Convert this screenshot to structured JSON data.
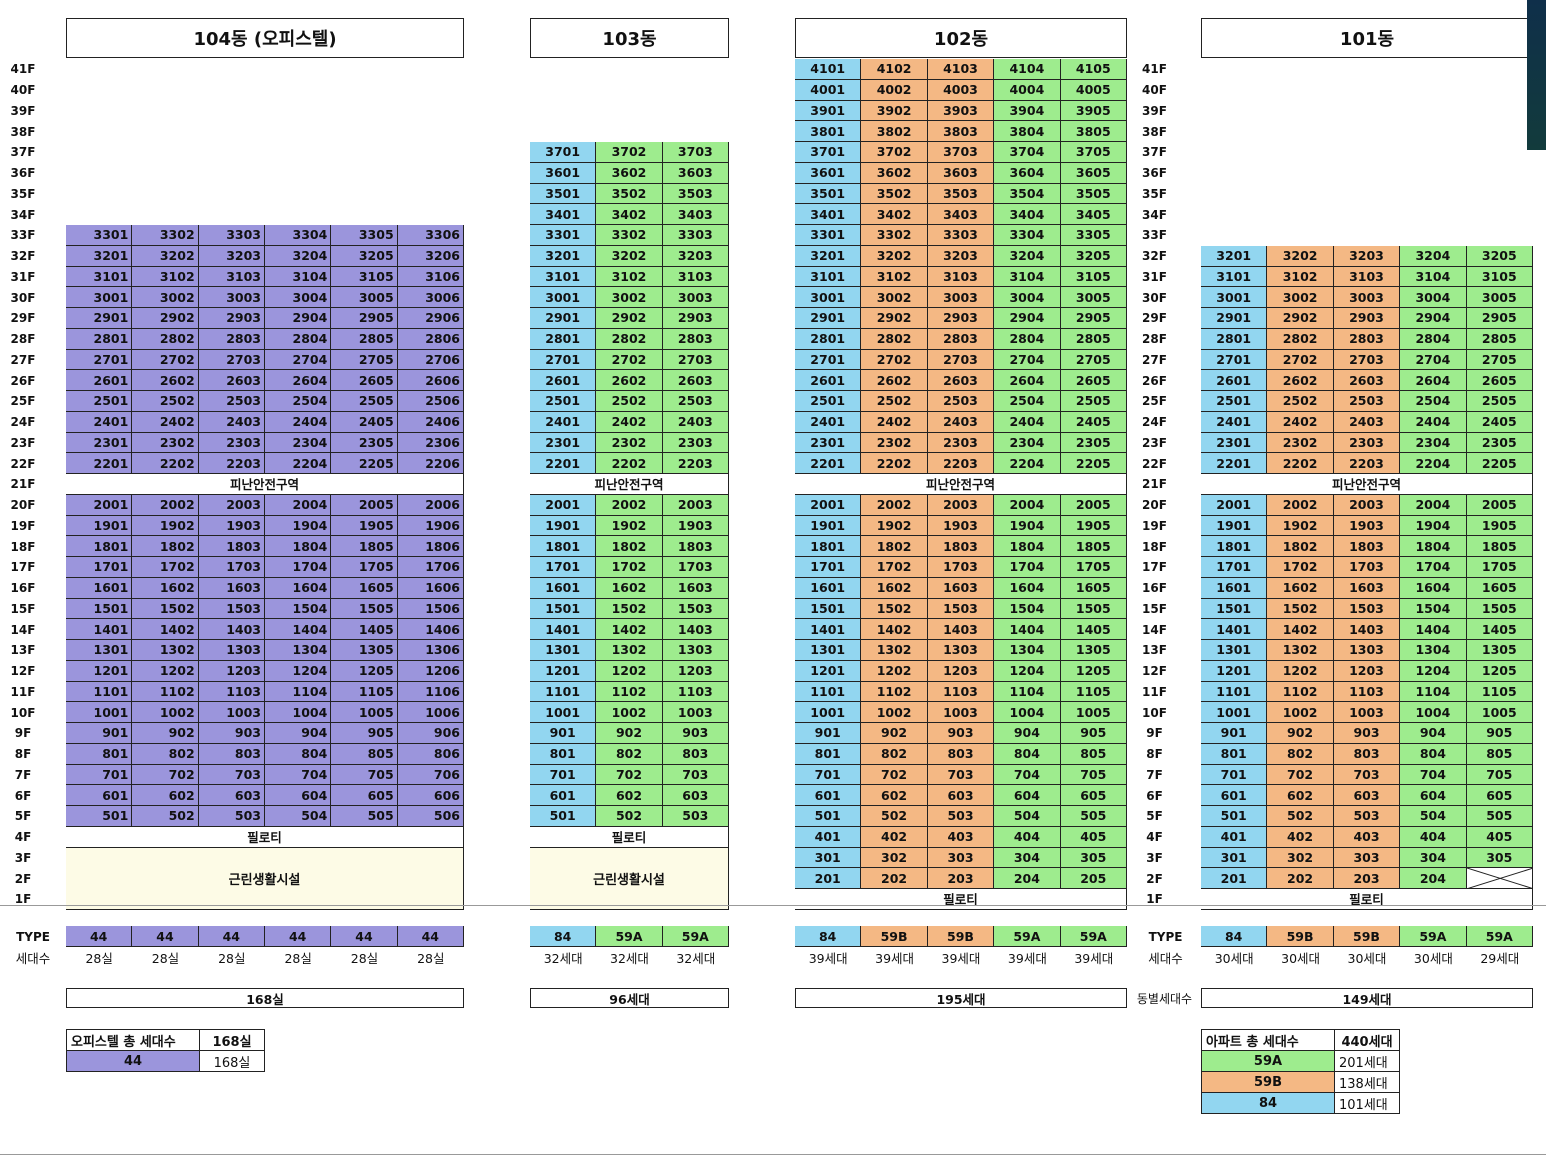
{
  "headers": {
    "b104": "104동 (오피스텔)",
    "b103": "103동",
    "b102": "102동",
    "b101": "101동"
  },
  "floor_labels": [
    "41F",
    "40F",
    "39F",
    "38F",
    "37F",
    "36F",
    "35F",
    "34F",
    "33F",
    "32F",
    "31F",
    "30F",
    "29F",
    "28F",
    "27F",
    "26F",
    "25F",
    "24F",
    "23F",
    "22F",
    "21F",
    "20F",
    "19F",
    "18F",
    "17F",
    "16F",
    "15F",
    "14F",
    "13F",
    "12F",
    "11F",
    "10F",
    "9F",
    "8F",
    "7F",
    "6F",
    "5F",
    "4F",
    "3F",
    "2F",
    "1F"
  ],
  "special": {
    "refuge": "피난안전구역",
    "piloti": "필로티",
    "retail": "근린생활시설"
  },
  "labels": {
    "type": "TYPE",
    "households": "세대수",
    "per_building": "동별세대수"
  },
  "types": {
    "b104": [
      "44",
      "44",
      "44",
      "44",
      "44",
      "44"
    ],
    "b103": [
      "84",
      "59A",
      "59A"
    ],
    "b102": [
      "84",
      "59B",
      "59B",
      "59A",
      "59A"
    ],
    "b101": [
      "84",
      "59B",
      "59B",
      "59A",
      "59A"
    ]
  },
  "counts": {
    "b104": [
      "28실",
      "28실",
      "28실",
      "28실",
      "28실",
      "28실"
    ],
    "b103": [
      "32세대",
      "32세대",
      "32세대"
    ],
    "b102": [
      "39세대",
      "39세대",
      "39세대",
      "39세대",
      "39세대"
    ],
    "b101": [
      "30세대",
      "30세대",
      "30세대",
      "30세대",
      "29세대"
    ]
  },
  "totals": {
    "b104": "168실",
    "b103": "96세대",
    "b102": "195세대",
    "b101": "149세대"
  },
  "officetel_summary": {
    "title": "오피스텔 총 세대수",
    "total": "168실",
    "type": "44",
    "value": "168실"
  },
  "apartment_summary": {
    "title": "아파트 총 세대수",
    "total": "440세대",
    "rows": [
      {
        "type": "59A",
        "value": "201세대"
      },
      {
        "type": "59B",
        "value": "138세대"
      },
      {
        "type": "84",
        "value": "101세대"
      }
    ]
  },
  "colors": {
    "officetel_44": "#9b95dc",
    "type_84": "#92d6f0",
    "type_59B": "#f4b884",
    "type_59A": "#9eec8e",
    "retail_bg": "#fdfbe6"
  },
  "buildings": {
    "b104": {
      "top_floor": 33,
      "units_per_floor": 6,
      "refuge_floor": 21,
      "piloti_floor": 4,
      "retail_floors": [
        1,
        2,
        3
      ],
      "lowest_unit_floor": 5,
      "unit_types": [
        "44",
        "44",
        "44",
        "44",
        "44",
        "44"
      ]
    },
    "b103": {
      "top_floor": 37,
      "units_per_floor": 3,
      "refuge_floor": 21,
      "piloti_floor": 4,
      "retail_floors": [
        1,
        2,
        3
      ],
      "lowest_unit_floor": 5,
      "unit_types": [
        "84",
        "59A",
        "59A"
      ]
    },
    "b102": {
      "top_floor": 41,
      "units_per_floor": 5,
      "refuge_floor": 21,
      "piloti_floor": 1,
      "lowest_unit_floor": 2,
      "unit_types": [
        "84",
        "59B",
        "59B",
        "59A",
        "59A"
      ]
    },
    "b101": {
      "top_floor": 32,
      "units_per_floor": 5,
      "refuge_floor": 21,
      "piloti_floor": 1,
      "lowest_unit_floor": 2,
      "missing_units": [
        "205"
      ],
      "unit_types": [
        "84",
        "59B",
        "59B",
        "59A",
        "59A"
      ]
    }
  }
}
